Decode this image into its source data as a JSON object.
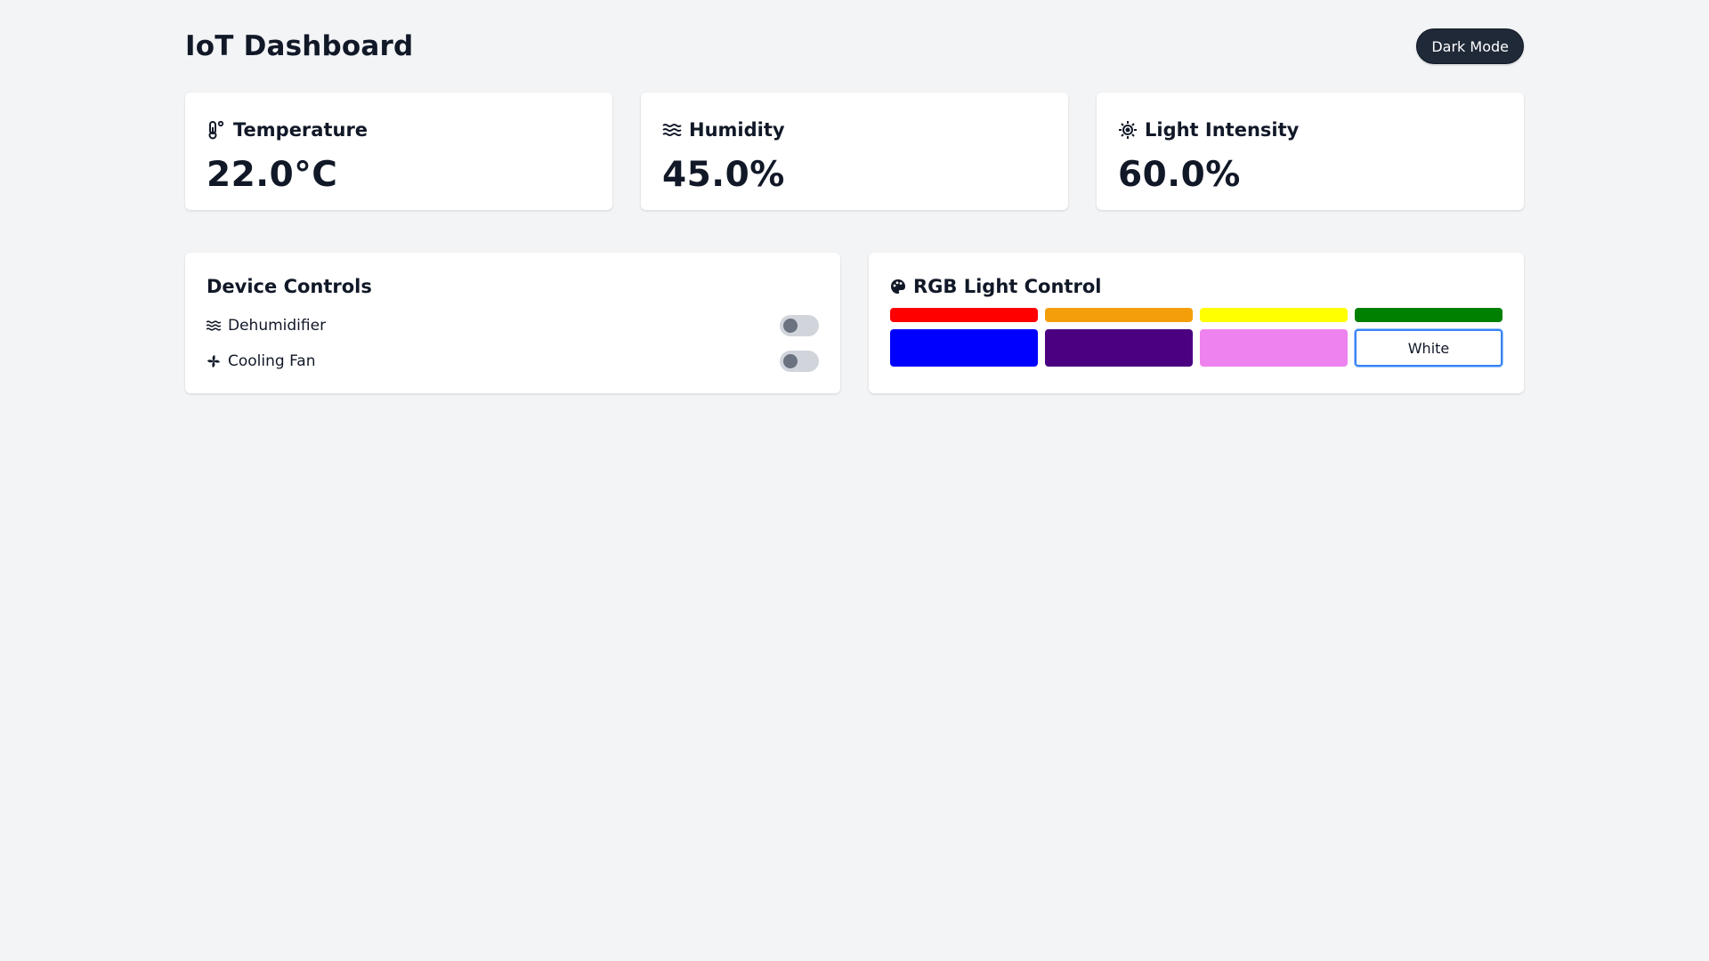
{
  "header": {
    "title": "IoT Dashboard",
    "dark_mode_label": "Dark Mode"
  },
  "sensors": [
    {
      "label": "Temperature",
      "value": "22.0°C",
      "icon": "thermometer-icon"
    },
    {
      "label": "Humidity",
      "value": "45.0%",
      "icon": "humidity-waves-icon"
    },
    {
      "label": "Light Intensity",
      "value": "60.0%",
      "icon": "sun-icon"
    }
  ],
  "controls": {
    "title": "Device Controls",
    "items": [
      {
        "label": "Dehumidifier",
        "icon": "waves-icon",
        "on": false
      },
      {
        "label": "Cooling Fan",
        "icon": "fan-icon",
        "on": false
      }
    ]
  },
  "rgb": {
    "title": "RGB Light Control",
    "icon": "palette-icon",
    "selected": "White",
    "colors": [
      {
        "name": "red",
        "hex": "#ff0000"
      },
      {
        "name": "orange",
        "hex": "#f59e0b"
      },
      {
        "name": "yellow",
        "hex": "#ffff00"
      },
      {
        "name": "green",
        "hex": "#008000"
      },
      {
        "name": "blue",
        "hex": "#0000ff"
      },
      {
        "name": "indigo",
        "hex": "#4b0082"
      },
      {
        "name": "violet",
        "hex": "#ee82ee"
      },
      {
        "name": "white",
        "hex": "#ffffff",
        "label": "White"
      }
    ]
  },
  "theme": {
    "background": "#f3f4f6",
    "card": "#ffffff",
    "text": "#111827",
    "toggle_track": "#d1d5db",
    "toggle_knob": "#6b7280",
    "selected_border": "#3b82f6"
  }
}
